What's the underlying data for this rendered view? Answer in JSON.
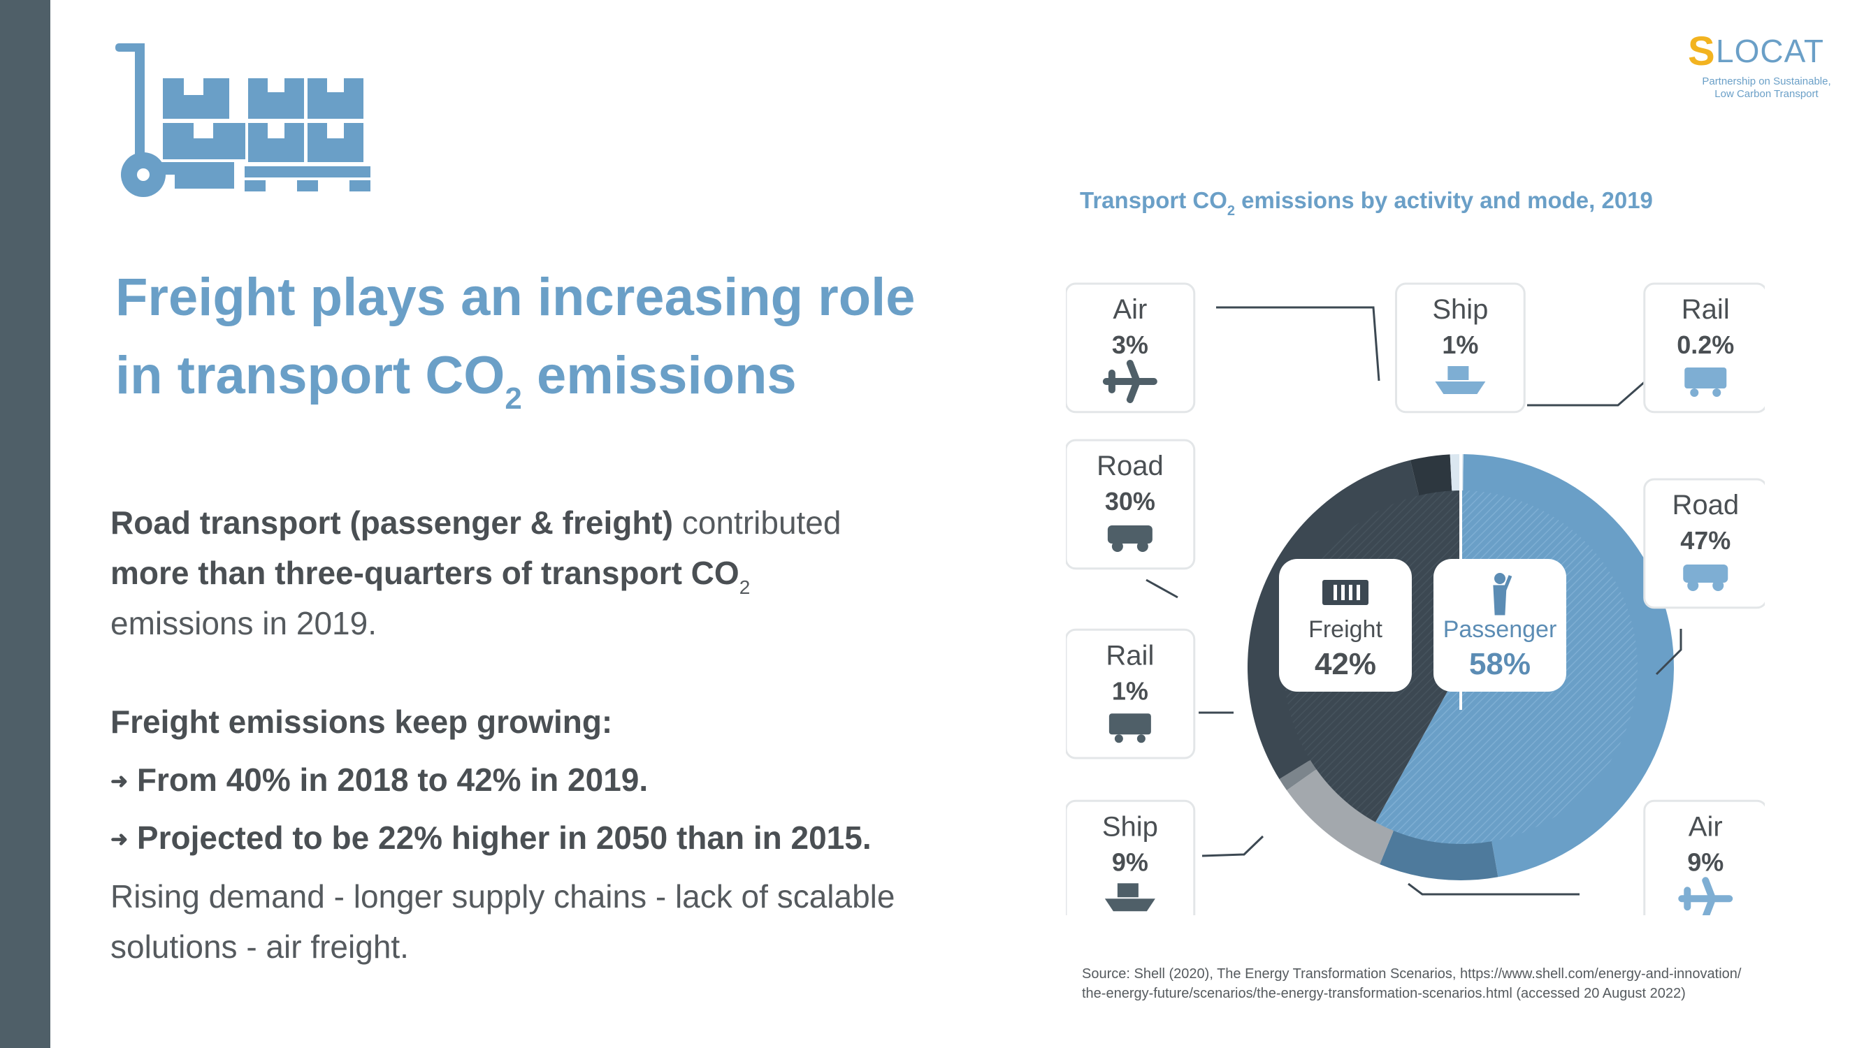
{
  "logo": {
    "name": "SLOCAT",
    "mark": "S",
    "rest": "LOCAT",
    "tagline_1": "Partnership on Sustainable,",
    "tagline_2": "Low Carbon Transport"
  },
  "headline": {
    "line1": "Freight plays an increasing role",
    "line2_pre": "in transport CO",
    "line2_sub": "2",
    "line2_post": " emissions"
  },
  "body": {
    "p1_bold_1": "Road transport (passenger & freight)",
    "p1_plain_1": " contributed",
    "p1_bold_2": "more than three-quarters of transport CO",
    "p1_sub": "2",
    "p1_plain_2": "emissions in 2019.",
    "p2_heading": "Freight emissions keep growing:",
    "arrow": "➜",
    "bullet_1": "From 40% in 2018 to 42% in 2019.",
    "bullet_2": "Projected to be 22% higher in 2050 than in 2015.",
    "p3_line1": "Rising demand - longer supply chains - lack of scalable",
    "p3_line2": "solutions - air freight."
  },
  "colors": {
    "accent": "#6a9fc7",
    "sidebar": "#4f5f68",
    "freight_dark": "#3c4852",
    "freight_mid": "#5a6670",
    "passenger_main": "#6a9fc7",
    "passenger_dark": "#4e7a9c",
    "ship_gray": "#a3a8ad"
  },
  "chart_data": {
    "type": "pie",
    "title_pre": "Transport CO",
    "title_sub": "2",
    "title_post": " emissions by activity and mode, 2019",
    "inner": [
      {
        "name": "Freight",
        "value": 42,
        "label": "42%",
        "icon": "container-icon"
      },
      {
        "name": "Passenger",
        "value": 58,
        "label": "58%",
        "icon": "person-icon"
      }
    ],
    "outer": [
      {
        "group": "Passenger",
        "mode": "Rail",
        "value": 0.2,
        "label": "0.2%",
        "icon": "train-icon"
      },
      {
        "group": "Passenger",
        "mode": "Road",
        "value": 47,
        "label": "47%",
        "icon": "car-icon"
      },
      {
        "group": "Passenger",
        "mode": "Air",
        "value": 9,
        "label": "9%",
        "icon": "plane-icon"
      },
      {
        "group": "Freight",
        "mode": "Ship",
        "value": 9,
        "label": "9%",
        "icon": "cargo-ship-icon"
      },
      {
        "group": "Freight",
        "mode": "Rail",
        "value": 1,
        "label": "1%",
        "icon": "freight-wagon-icon"
      },
      {
        "group": "Freight",
        "mode": "Road",
        "value": 30,
        "label": "30%",
        "icon": "truck-icon"
      },
      {
        "group": "Freight",
        "mode": "Air",
        "value": 3,
        "label": "3%",
        "icon": "cargo-plane-icon"
      },
      {
        "group": "Passenger",
        "mode": "Ship",
        "value": 1,
        "label": "1%",
        "icon": "passenger-ship-icon"
      }
    ]
  },
  "source": {
    "line1": "Source: Shell (2020), The Energy Transformation Scenarios, https://www.shell.com/energy-and-innovation/",
    "line2": "the-energy-future/scenarios/the-energy-transformation-scenarios.html (accessed 20 August 2022)"
  }
}
